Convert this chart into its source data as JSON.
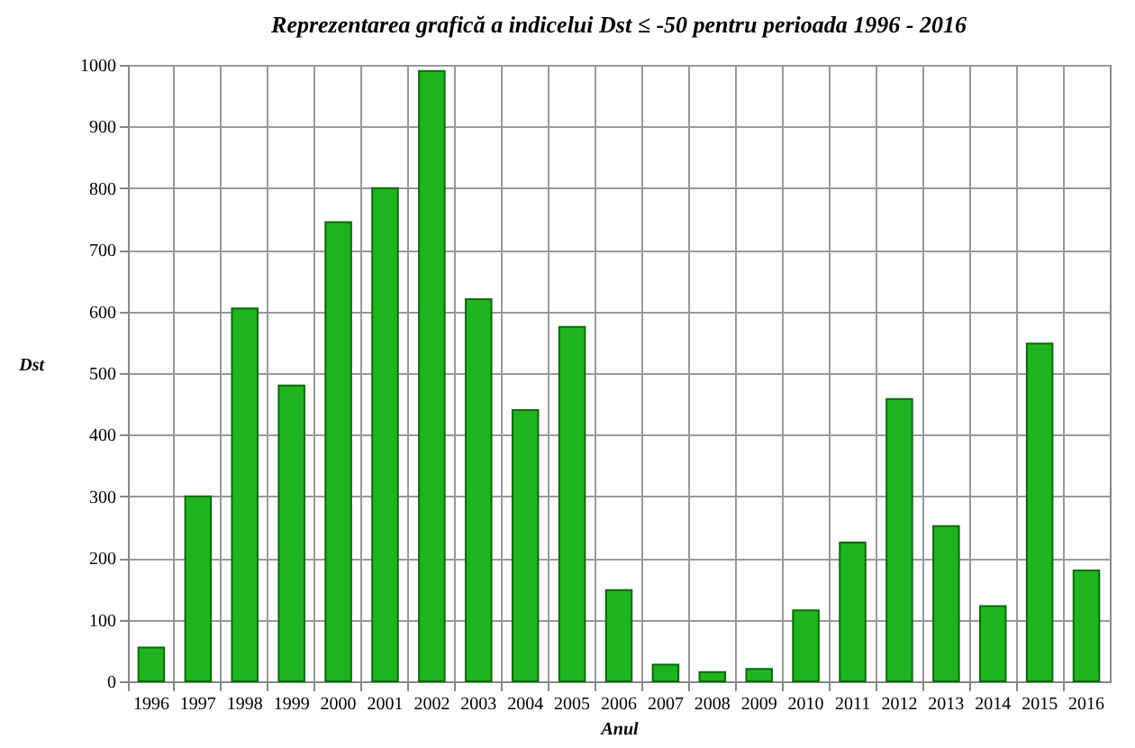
{
  "chart_data": {
    "type": "bar",
    "title": "Reprezentarea grafică a indicelui Dst ≤ -50 pentru perioada 1996 - 2016",
    "xlabel": "Anul",
    "ylabel": "Dst",
    "categories": [
      "1996",
      "1997",
      "1998",
      "1999",
      "2000",
      "2001",
      "2002",
      "2003",
      "2004",
      "2005",
      "2006",
      "2007",
      "2008",
      "2009",
      "2010",
      "2011",
      "2012",
      "2013",
      "2014",
      "2015",
      "2016"
    ],
    "values": [
      55,
      300,
      605,
      480,
      745,
      800,
      990,
      620,
      440,
      575,
      148,
      27,
      15,
      20,
      115,
      225,
      458,
      252,
      122,
      548,
      180
    ],
    "color": "#1fb41f",
    "ylim": [
      0,
      1000
    ],
    "yticks": [
      0,
      100,
      200,
      300,
      400,
      500,
      600,
      700,
      800,
      900,
      1000
    ],
    "grid": true
  }
}
